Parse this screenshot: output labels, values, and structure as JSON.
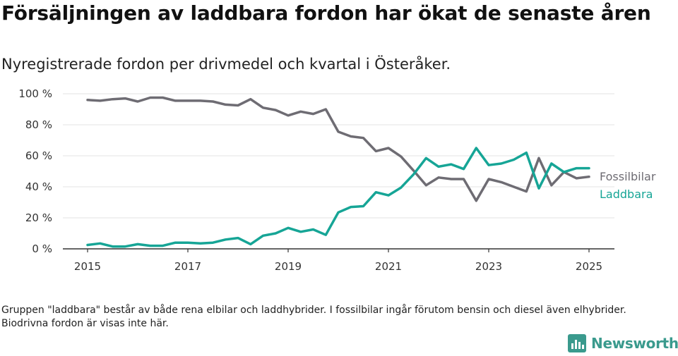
{
  "title": "Försäljningen av laddbara fordon har ökat de senaste åren",
  "subtitle": "Nyregistrerade fordon per drivmedel och kvartal i Österåker.",
  "note": "Gruppen \"laddbara\" består av både rena elbilar och laddhybrider. I fossilbilar ingår förutom bensin och diesel även elhybrider. Biodrivna fordon är visas inte här.",
  "brand": {
    "name": "Newsworthy",
    "logo_icon": "bar-chart-icon",
    "color": "#3a9a8d"
  },
  "chart_data": {
    "type": "line",
    "x_start": "2015-01-01",
    "x": [
      "2015 Q1",
      "2015 Q2",
      "2015 Q3",
      "2015 Q4",
      "2016 Q1",
      "2016 Q2",
      "2016 Q3",
      "2016 Q4",
      "2017 Q1",
      "2017 Q2",
      "2017 Q3",
      "2017 Q4",
      "2018 Q1",
      "2018 Q2",
      "2018 Q3",
      "2018 Q4",
      "2019 Q1",
      "2019 Q2",
      "2019 Q3",
      "2019 Q4",
      "2020 Q1",
      "2020 Q2",
      "2020 Q3",
      "2020 Q4",
      "2021 Q1",
      "2021 Q2",
      "2021 Q3",
      "2021 Q4",
      "2022 Q1",
      "2022 Q2",
      "2022 Q3",
      "2022 Q4",
      "2023 Q1",
      "2023 Q2",
      "2023 Q3",
      "2023 Q4",
      "2024 Q1",
      "2024 Q2",
      "2024 Q3",
      "2024 Q4",
      "2025 Q1"
    ],
    "x_ticks": [
      "2015",
      "2017",
      "2019",
      "2021",
      "2023",
      "2025"
    ],
    "y_ticks": [
      "0 %",
      "20 %",
      "40 %",
      "60 %",
      "80 %",
      "100 %"
    ],
    "ylim": [
      0,
      100
    ],
    "grid": true,
    "series": [
      {
        "name": "Fossilbilar",
        "color": "#6e6c73",
        "values": [
          96,
          95.5,
          96.5,
          97,
          95,
          97.5,
          97.5,
          95.5,
          95.5,
          95.5,
          95,
          93,
          92.5,
          96.5,
          91,
          89.5,
          86,
          88.5,
          87,
          90,
          75.5,
          72.5,
          71.5,
          63,
          65,
          59.5,
          50.5,
          41,
          46,
          45,
          45,
          31,
          45,
          43,
          40,
          37,
          58.5,
          41,
          49.5,
          45.5,
          46.5
        ]
      },
      {
        "name": "Laddbara",
        "color": "#16a596",
        "values": [
          2.5,
          3.5,
          1.5,
          1.5,
          3,
          2,
          2,
          4,
          4,
          3.5,
          4,
          6,
          7,
          3,
          8.5,
          10,
          13.5,
          11,
          12.5,
          9,
          23.5,
          27,
          27.5,
          36.5,
          34.5,
          39.5,
          48,
          58.5,
          53,
          54.5,
          51.5,
          65,
          54,
          55,
          57.5,
          62,
          39,
          55,
          49.5,
          52,
          52
        ]
      }
    ]
  }
}
